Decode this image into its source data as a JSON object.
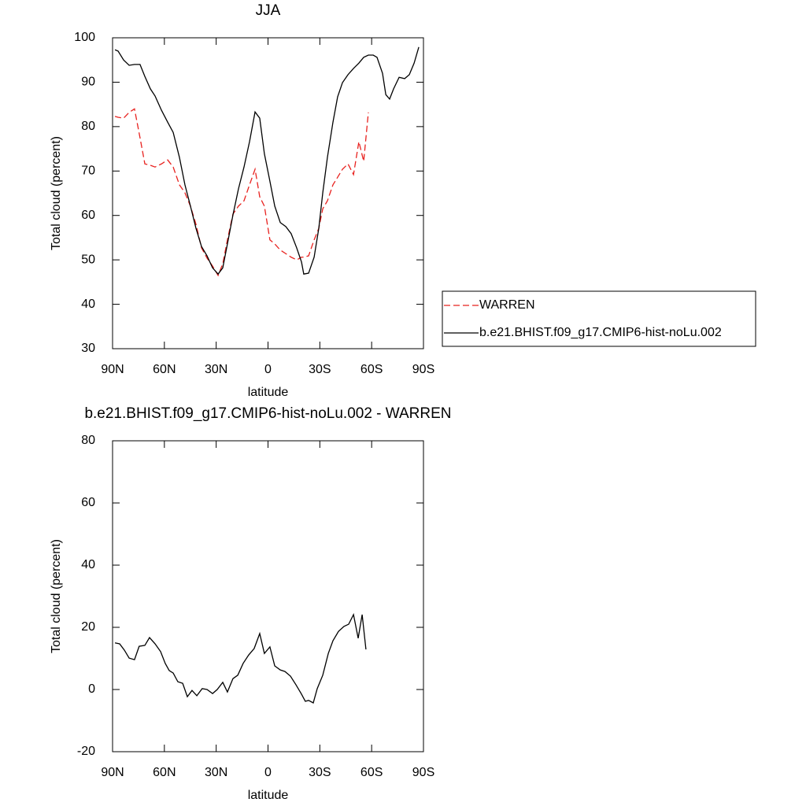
{
  "chart_data": [
    {
      "type": "line",
      "title": "JJA",
      "xlabel": "latitude",
      "ylabel": "Total cloud (percent)",
      "x": [
        88.6,
        86.8,
        83.6,
        80.4,
        77.3,
        74.1,
        71.3,
        68.1,
        65.4,
        61.7,
        58.1,
        54.9,
        51.3,
        48.1,
        44.9,
        41.7,
        38.5,
        35.3,
        32.1,
        28.9,
        26.2,
        23.5,
        20.3,
        17.1,
        13.9,
        10.7,
        7.5,
        4.8,
        2.1,
        -1.1,
        -3.9,
        -7.1,
        -10.3,
        -13.4,
        -16.6,
        -19.4,
        -20.7,
        -23.5,
        -26.7,
        -29.4,
        -31.7,
        -34.4,
        -37.6,
        -40.3,
        -43.1,
        -46.3,
        -49.5,
        -52.6,
        -55.4,
        -58.1,
        -60.9,
        -63.1,
        -66.3,
        -68.2,
        -70.4,
        -72.7,
        -75.9,
        -79.1,
        -81.8,
        -84.6,
        -87.3
      ],
      "series": [
        {
          "name": "WARREN",
          "color": "#e8211e",
          "dash": true,
          "values": [
            82.3,
            82.1,
            81.9,
            83.2,
            84.0,
            77.5,
            71.6,
            71.3,
            70.9,
            71.6,
            72.5,
            70.9,
            66.9,
            65.1,
            62.1,
            58.0,
            52.7,
            50.4,
            48.6,
            46.5,
            49.1,
            54.5,
            60.3,
            62.1,
            63.3,
            66.9,
            70.4,
            64.2,
            62.1,
            54.5,
            53.6,
            52.2,
            51.4,
            50.6,
            50.0,
            50.6,
            50.6,
            50.9,
            54.5,
            57.1,
            61.5,
            63.3,
            66.9,
            68.6,
            70.4,
            71.6,
            69.2,
            76.6,
            72.2,
            83.2,
            null,
            null,
            null,
            null,
            null,
            null,
            null,
            null,
            null,
            null,
            null
          ]
        },
        {
          "name": "b.e21.BHIST.f09_g17.CMIP6-hist-noLu.002",
          "color": "#000000",
          "dash": false,
          "values": [
            97.3,
            97.0,
            95.0,
            93.8,
            94.0,
            94.0,
            91.3,
            88.5,
            86.9,
            83.7,
            81.0,
            78.7,
            73.1,
            66.9,
            62.1,
            57.1,
            53.0,
            50.9,
            48.2,
            46.8,
            48.2,
            53.6,
            60.1,
            66.0,
            70.9,
            76.6,
            83.3,
            81.9,
            73.9,
            67.7,
            62.1,
            58.4,
            57.5,
            55.9,
            52.7,
            49.5,
            46.8,
            47.0,
            50.6,
            57.1,
            65.1,
            73.1,
            81.0,
            86.7,
            89.9,
            91.7,
            93.1,
            94.3,
            95.6,
            96.1,
            96.1,
            95.6,
            92.0,
            87.2,
            86.2,
            88.5,
            91.1,
            90.8,
            91.7,
            94.3,
            97.9
          ]
        }
      ],
      "xlim": [
        90,
        -90
      ],
      "xticks": [
        {
          "value": 90,
          "label": "90N"
        },
        {
          "value": 60,
          "label": "60N"
        },
        {
          "value": 30,
          "label": "30N"
        },
        0,
        {
          "value": -30,
          "label": "30S"
        },
        {
          "value": -60,
          "label": "60S"
        },
        {
          "value": -90,
          "label": "90S"
        }
      ],
      "ylim": [
        30,
        100
      ],
      "yticks": [
        30,
        40,
        50,
        60,
        70,
        80,
        90,
        100
      ],
      "legend_position": "right"
    },
    {
      "type": "line",
      "title": "b.e21.BHIST.f09_g17.CMIP6-hist-noLu.002 - WARREN",
      "xlabel": "latitude",
      "ylabel": "Total cloud (percent)",
      "x": [
        88.6,
        85.9,
        83.2,
        80.4,
        77.3,
        74.6,
        71.3,
        68.6,
        65.4,
        62.2,
        59.5,
        57.2,
        54.9,
        52.2,
        49.4,
        46.7,
        44.0,
        41.2,
        38.1,
        35.3,
        32.1,
        29.4,
        26.2,
        23.5,
        20.3,
        17.5,
        14.4,
        11.2,
        8.0,
        4.8,
        2.1,
        -1.1,
        -3.9,
        -7.1,
        -9.8,
        -13.0,
        -16.2,
        -19.4,
        -21.6,
        -23.5,
        -26.2,
        -28.5,
        -31.7,
        -34.9,
        -37.6,
        -40.8,
        -44.0,
        -46.7,
        -49.5,
        -52.2,
        -54.5,
        -56.7
      ],
      "series": [
        {
          "color": "#000000",
          "values": [
            15.0,
            14.7,
            12.7,
            10.1,
            9.6,
            13.9,
            14.2,
            16.7,
            14.7,
            12.2,
            8.4,
            6.1,
            5.3,
            2.5,
            2.0,
            -2.3,
            -0.3,
            -2.0,
            0.3,
            0,
            -1.3,
            0,
            2.3,
            -0.8,
            3.5,
            4.6,
            8.4,
            11.1,
            13.2,
            18.0,
            11.6,
            13.7,
            7.6,
            6.3,
            5.8,
            4.3,
            1.5,
            -1.5,
            -3.8,
            -3.5,
            -4.3,
            0.3,
            4.6,
            11.6,
            15.7,
            18.7,
            20.3,
            21.0,
            24.1,
            16.5,
            24.1,
            12.9
          ]
        }
      ],
      "xlim": [
        90,
        -90
      ],
      "xticks": [
        {
          "value": 90,
          "label": "90N"
        },
        {
          "value": 60,
          "label": "60N"
        },
        {
          "value": 30,
          "label": "30N"
        },
        0,
        {
          "value": -30,
          "label": "30S"
        },
        {
          "value": -60,
          "label": "60S"
        },
        {
          "value": -90,
          "label": "90S"
        }
      ],
      "ylim": [
        -20,
        80
      ],
      "yticks": [
        -20,
        0,
        20,
        40,
        60,
        80
      ]
    }
  ]
}
